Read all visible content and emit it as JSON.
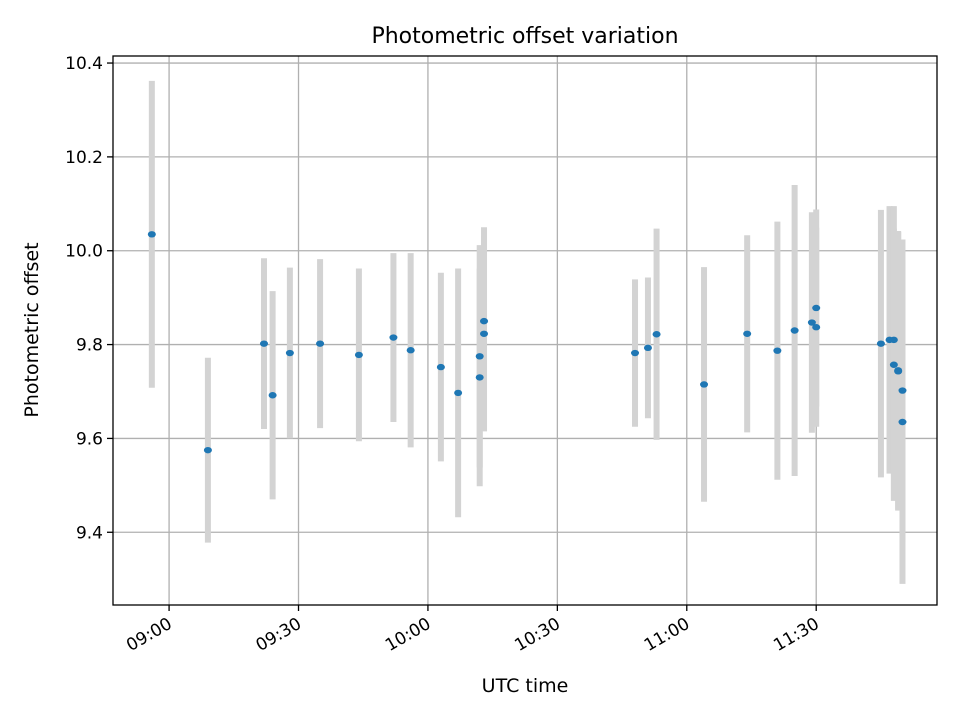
{
  "chart_data": {
    "type": "scatter",
    "title": "Photometric offset variation",
    "xlabel": "UTC time",
    "ylabel": "Photometric offset",
    "x_axis_type": "time",
    "xlim": [
      "08:47",
      "11:58"
    ],
    "ylim": [
      9.245,
      10.415
    ],
    "x_ticks": [
      "09:00",
      "09:30",
      "10:00",
      "10:30",
      "11:00",
      "11:30"
    ],
    "y_ticks": [
      9.4,
      9.6,
      9.8,
      10.0,
      10.2,
      10.4
    ],
    "y_tick_labels": [
      "9.4",
      "9.6",
      "9.8",
      "10.0",
      "10.2",
      "10.4"
    ],
    "grid": true,
    "marker_color": "#1f77b4",
    "errorbar_color": "#d3d3d3",
    "series": [
      {
        "points": [
          {
            "x": "08:56",
            "y": 10.035,
            "err": 0.327
          },
          {
            "x": "09:09",
            "y": 9.575,
            "err": 0.197
          },
          {
            "x": "09:22",
            "y": 9.802,
            "err": 0.182
          },
          {
            "x": "09:24",
            "y": 9.692,
            "err": 0.222
          },
          {
            "x": "09:28",
            "y": 9.782,
            "err": 0.182
          },
          {
            "x": "09:35",
            "y": 9.802,
            "err": 0.18
          },
          {
            "x": "09:44",
            "y": 9.778,
            "err": 0.184
          },
          {
            "x": "09:52",
            "y": 9.815,
            "err": 0.18
          },
          {
            "x": "09:56",
            "y": 9.788,
            "err": 0.207
          },
          {
            "x": "10:03",
            "y": 9.752,
            "err": 0.201
          },
          {
            "x": "10:07",
            "y": 9.697,
            "err": 0.265
          },
          {
            "x": "10:12",
            "y": 9.775,
            "err": 0.237
          },
          {
            "x": "10:12",
            "y": 9.73,
            "err": 0.232
          },
          {
            "x": "10:13",
            "y": 9.85,
            "err": 0.2
          },
          {
            "x": "10:13",
            "y": 9.823,
            "err": 0.208
          },
          {
            "x": "10:48",
            "y": 9.782,
            "err": 0.157
          },
          {
            "x": "10:51",
            "y": 9.793,
            "err": 0.15
          },
          {
            "x": "10:53",
            "y": 9.822,
            "err": 0.225
          },
          {
            "x": "11:04",
            "y": 9.715,
            "err": 0.25
          },
          {
            "x": "11:14",
            "y": 9.823,
            "err": 0.21
          },
          {
            "x": "11:21",
            "y": 9.787,
            "err": 0.275
          },
          {
            "x": "11:25",
            "y": 9.83,
            "err": 0.31
          },
          {
            "x": "11:29",
            "y": 9.847,
            "err": 0.235
          },
          {
            "x": "11:30",
            "y": 9.878,
            "err": 0.21
          },
          {
            "x": "11:30",
            "y": 9.837,
            "err": 0.212
          },
          {
            "x": "11:45",
            "y": 9.802,
            "err": 0.285
          },
          {
            "x": "11:47",
            "y": 9.81,
            "err": 0.285
          },
          {
            "x": "11:48",
            "y": 9.81,
            "err": 0.285
          },
          {
            "x": "11:48",
            "y": 9.757,
            "err": 0.29
          },
          {
            "x": "11:49",
            "y": 9.745,
            "err": 0.297
          },
          {
            "x": "11:49",
            "y": 9.743,
            "err": 0.297
          },
          {
            "x": "11:50",
            "y": 9.702,
            "err": 0.322
          },
          {
            "x": "11:50",
            "y": 9.635,
            "err": 0.345
          }
        ]
      }
    ]
  }
}
